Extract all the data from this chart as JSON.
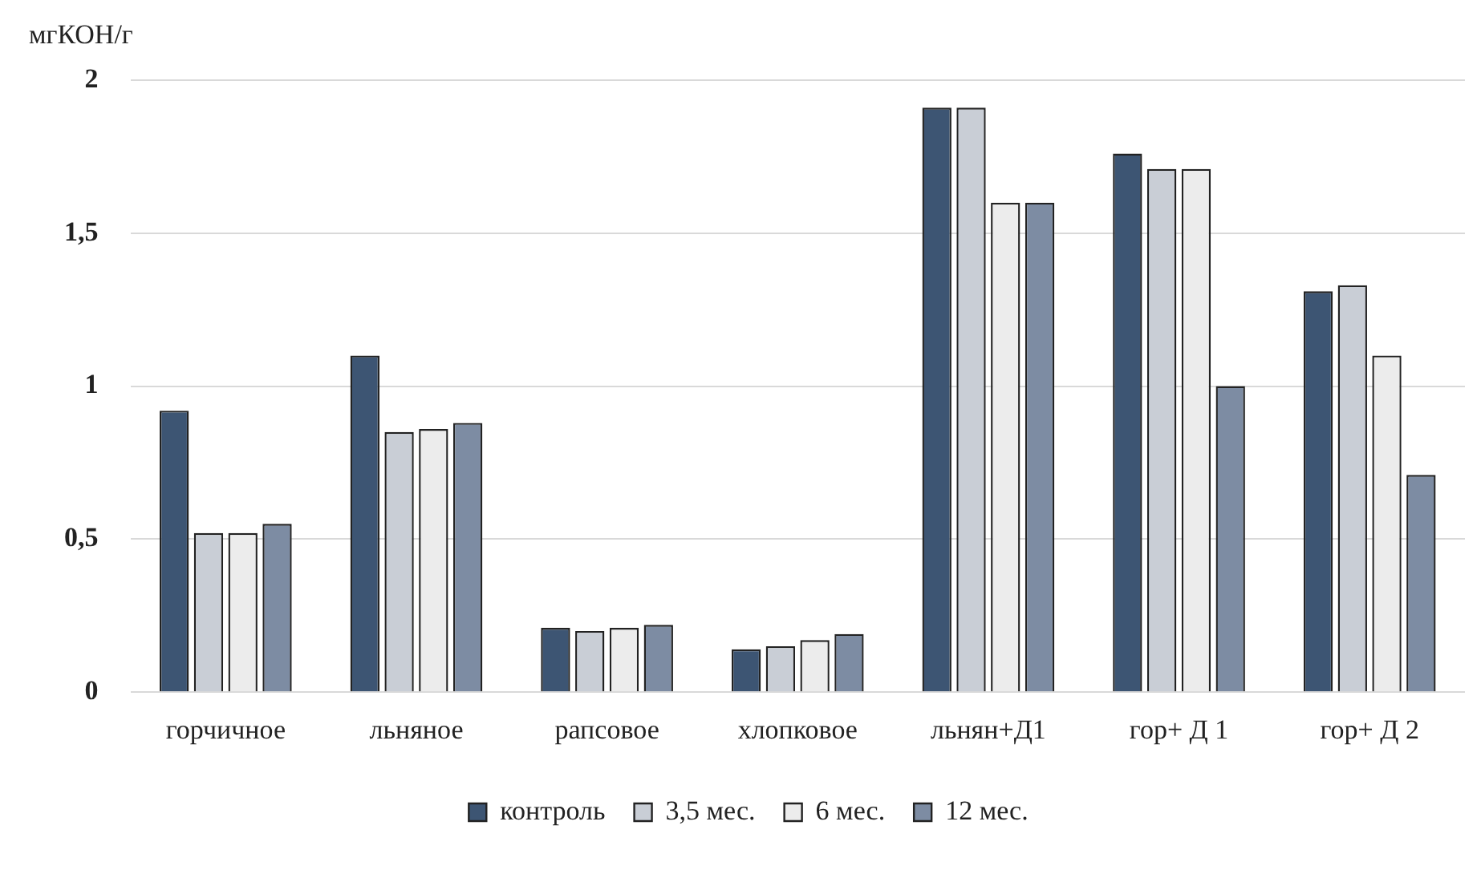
{
  "chart_data": {
    "type": "bar",
    "ylabel": "мгКОН/г",
    "categories": [
      "горчичное",
      "льняное",
      "рапсовое",
      "хлопковое",
      "льнян+Д1",
      "гор+ Д 1",
      "гор+ Д 2"
    ],
    "series": [
      {
        "name": "контроль",
        "color": "#3d5573",
        "values": [
          0.92,
          1.1,
          0.21,
          0.14,
          1.91,
          1.76,
          1.31
        ]
      },
      {
        "name": "3,5 мес.",
        "color": "#c9ced6",
        "values": [
          0.52,
          0.85,
          0.2,
          0.15,
          1.91,
          1.71,
          1.33
        ]
      },
      {
        "name": "6 мес.",
        "color": "#ececec",
        "values": [
          0.52,
          0.86,
          0.21,
          0.17,
          1.6,
          1.71,
          1.1
        ]
      },
      {
        "name": "12 мес.",
        "color": "#7d8ca3",
        "values": [
          0.55,
          0.88,
          0.22,
          0.19,
          1.6,
          1.0,
          0.71
        ]
      }
    ],
    "ylim": [
      0,
      2
    ],
    "yticks": [
      0,
      {
        "value": 0.5,
        "label": "0,5"
      },
      1,
      {
        "value": 1.5,
        "label": "1,5"
      },
      2
    ],
    "grid": "y",
    "legend": "bottom"
  }
}
